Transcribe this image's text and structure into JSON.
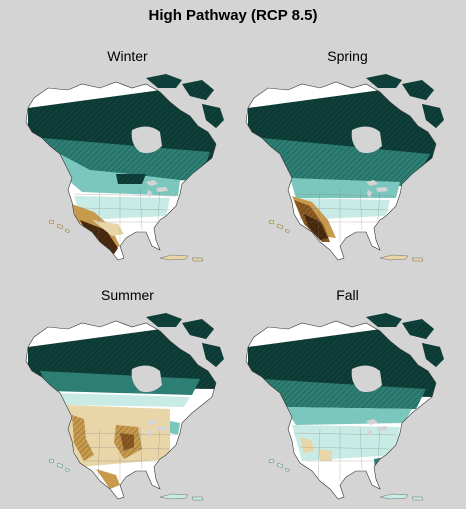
{
  "title": "High Pathway (RCP 8.5)",
  "panels": [
    {
      "id": "winter",
      "label": "Winter"
    },
    {
      "id": "spring",
      "label": "Spring"
    },
    {
      "id": "summer",
      "label": "Summer"
    },
    {
      "id": "fall",
      "label": "Fall"
    }
  ],
  "colors": {
    "background": "#d4d4d4",
    "wet_strong": "#0f3f39",
    "wet_medium": "#2d7f74",
    "wet_light": "#7cc7bd",
    "wet_faint": "#c9ebe5",
    "neutral": "#ffffff",
    "dry_faint": "#e8d6a8",
    "dry_light": "#c79a4c",
    "dry_medium": "#8c5a22",
    "dry_strong": "#4a2b10",
    "border_lines": "#777777"
  }
}
